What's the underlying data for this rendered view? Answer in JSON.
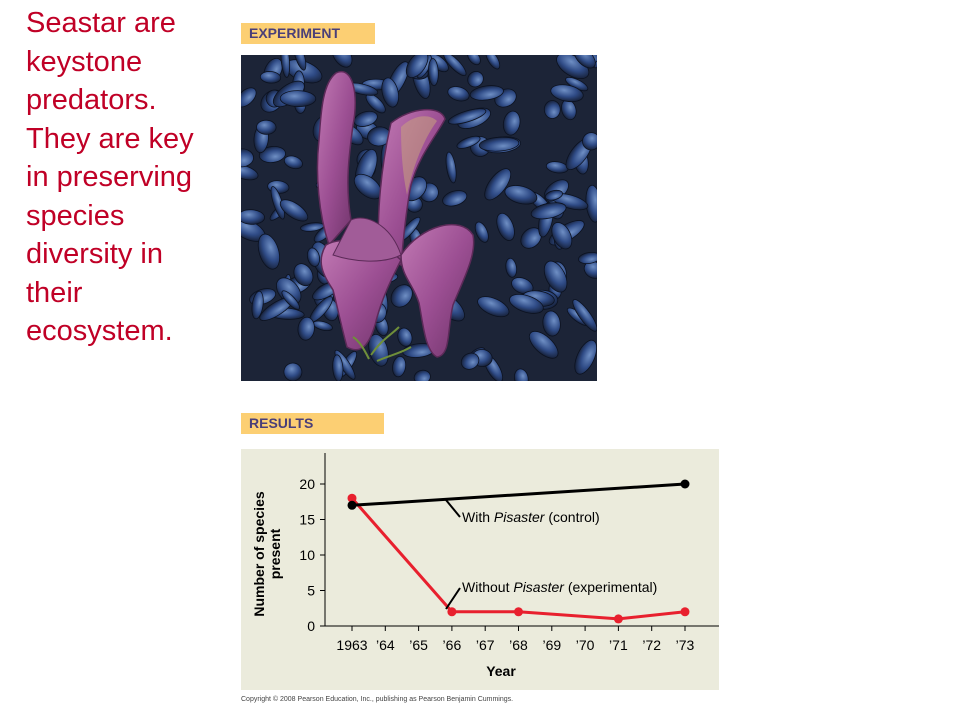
{
  "slide": {
    "lines": [
      "Seastar are",
      "keystone",
      "predators.",
      "They are key",
      "in preserving",
      "species",
      "diversity in",
      "their",
      "ecosystem."
    ]
  },
  "experiment_label": "EXPERIMENT",
  "results_label": "RESULTS",
  "copyright": "Copyright © 2008 Pearson Education, Inc., publishing as Pearson Benjamin Cummings.",
  "chart_data": {
    "type": "line",
    "title": "",
    "xlabel": "Year",
    "ylabel_lines": [
      "Number of species",
      "present"
    ],
    "x_ticks": [
      "1963",
      "’64",
      "’65",
      "’66",
      "’67",
      "’68",
      "’69",
      "’70",
      "’71",
      "’72",
      "’73"
    ],
    "x_tick_values": [
      1963,
      1964,
      1965,
      1966,
      1967,
      1968,
      1969,
      1970,
      1971,
      1972,
      1973
    ],
    "y_ticks": [
      0,
      5,
      10,
      15,
      20
    ],
    "ylim": [
      0,
      20
    ],
    "grid": false,
    "series": [
      {
        "name": "control",
        "label_prefix": "With ",
        "label_italic": "Pisaster",
        "label_suffix": " (control)",
        "color": "#000000",
        "x": [
          1963,
          1973
        ],
        "y": [
          17,
          20
        ]
      },
      {
        "name": "experimental",
        "label_prefix": "Without ",
        "label_italic": "Pisaster",
        "label_suffix": " (experimental)",
        "color": "#e8202e",
        "x": [
          1963,
          1966,
          1968,
          1971,
          1973
        ],
        "y": [
          18,
          2,
          2,
          1,
          2
        ]
      }
    ],
    "background_color": "#ebebdc"
  }
}
